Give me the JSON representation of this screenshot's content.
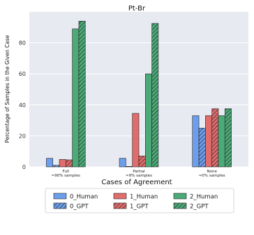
{
  "chart_data": {
    "type": "bar",
    "title": "Pt-Br",
    "xlabel": "Cases of Agreement",
    "ylabel": "Percentage of Samples in the Given Case",
    "ylim": [
      0,
      100
    ],
    "yticks": [
      0,
      20,
      40,
      60,
      80
    ],
    "grid": true,
    "legend_position": "bottom",
    "categories": [
      {
        "name": "Full",
        "sub": "≈90% samples"
      },
      {
        "name": "Partial",
        "sub": "≈9% samples"
      },
      {
        "name": "None",
        "sub": "≈0% samples"
      }
    ],
    "series": [
      {
        "name": "0_Human",
        "color": "#6d9eeb",
        "hatch": false,
        "values": [
          5.5,
          5.5,
          33
        ]
      },
      {
        "name": "0_GPT",
        "color": "#6d9eeb",
        "hatch": true,
        "values": [
          1,
          0.3,
          25
        ]
      },
      {
        "name": "1_Human",
        "color": "#e06c6c",
        "hatch": false,
        "values": [
          4.8,
          34.5,
          33
        ]
      },
      {
        "name": "1_GPT",
        "color": "#e06c6c",
        "hatch": true,
        "values": [
          4.5,
          7,
          37.5
        ]
      },
      {
        "name": "2_Human",
        "color": "#4caa78",
        "hatch": false,
        "values": [
          89,
          60,
          33
        ]
      },
      {
        "name": "2_GPT",
        "color": "#4caa78",
        "hatch": true,
        "values": [
          94,
          92.5,
          37.5
        ]
      }
    ],
    "background_color": "#e8eaf2"
  }
}
